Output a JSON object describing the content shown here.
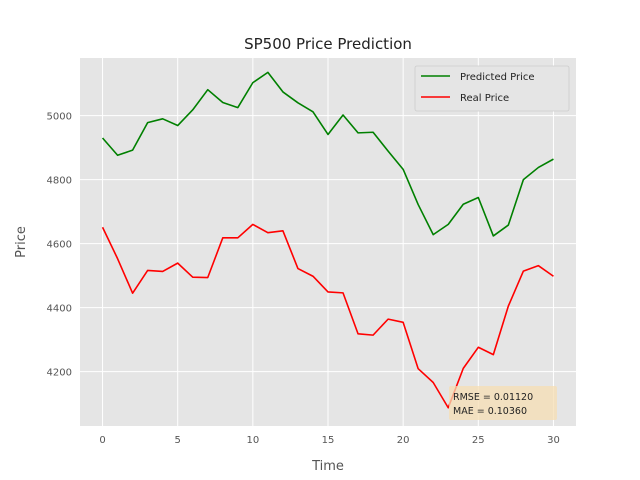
{
  "chart_data": {
    "type": "line",
    "title": "SP500 Price Prediction",
    "xlabel": "Time",
    "ylabel": "Price",
    "xlim": [
      -1.5,
      31.5
    ],
    "ylim": [
      4030,
      5180
    ],
    "xticks": [
      0,
      5,
      10,
      15,
      20,
      25,
      30
    ],
    "yticks": [
      4200,
      4400,
      4600,
      4800,
      5000
    ],
    "grid": true,
    "legend_position": "top-right",
    "x": [
      0,
      1,
      2,
      3,
      4,
      5,
      6,
      7,
      8,
      9,
      10,
      11,
      12,
      13,
      14,
      15,
      16,
      17,
      18,
      19,
      20,
      21,
      22,
      23,
      24,
      25,
      26,
      27,
      28,
      29,
      30
    ],
    "series": [
      {
        "name": "Predicted Price",
        "color": "#008000",
        "values": [
          4930,
          4876,
          4892,
          4978,
          4990,
          4969,
          5018,
          5081,
          5041,
          5025,
          5103,
          5135,
          5074,
          5040,
          5012,
          4941,
          5002,
          4946,
          4948,
          4889,
          4832,
          4722,
          4628,
          4660,
          4723,
          4744,
          4624,
          4658,
          4800,
          4838,
          4864
        ]
      },
      {
        "name": "Real Price",
        "color": "#ff0000",
        "values": [
          4651,
          4553,
          4445,
          4516,
          4513,
          4539,
          4495,
          4494,
          4618,
          4618,
          4660,
          4634,
          4640,
          4522,
          4498,
          4449,
          4446,
          4318,
          4314,
          4364,
          4354,
          4209,
          4166,
          4087,
          4210,
          4276,
          4253,
          4405,
          4514,
          4531,
          4498
        ]
      }
    ],
    "annotation": {
      "line1": "RMSE = 0.01120",
      "line2": "MAE = 0.10360",
      "background": "#f5deb3"
    },
    "colors": {
      "plot_background": "#e5e5e5",
      "grid": "#ffffff",
      "text": "#555555"
    }
  }
}
